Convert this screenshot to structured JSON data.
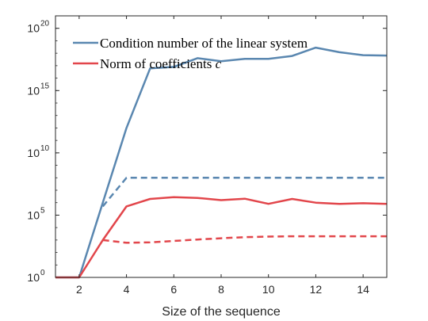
{
  "chart_data": {
    "type": "line",
    "title": "",
    "xlabel": "Size of the sequence",
    "ylabel": "",
    "xlim": [
      1,
      15
    ],
    "ylim": [
      1,
      1e+21
    ],
    "yscale": "log",
    "grid": false,
    "legend_position": "top-left",
    "x_ticks": [
      2,
      4,
      6,
      8,
      10,
      12,
      14
    ],
    "y_ticks": [
      {
        "base": "10",
        "exp": "0",
        "value": 1
      },
      {
        "base": "10",
        "exp": "5",
        "value": 100000
      },
      {
        "base": "10",
        "exp": "10",
        "value": 10000000000
      },
      {
        "base": "10",
        "exp": "15",
        "value": 1000000000000000.0
      },
      {
        "base": "10",
        "exp": "20",
        "value": 1e+20
      }
    ],
    "legend": [
      {
        "text": "Condition number of the linear system",
        "italic_suffix": "",
        "color": "#5a87b0"
      },
      {
        "text": "Norm of coefficients ",
        "italic_suffix": "c",
        "color": "#e2464b"
      }
    ],
    "series": [
      {
        "key": "condition-solid",
        "color": "#5a87b0",
        "dash": false,
        "x": [
          1,
          2,
          3,
          4,
          5,
          6,
          7,
          8,
          9,
          10,
          11,
          12,
          13,
          14,
          15
        ],
        "y": [
          1,
          1,
          1000000.0,
          1000000000000.0,
          6e+16,
          8e+16,
          4e+17,
          2.3e+17,
          3.5e+17,
          3.5e+17,
          6e+17,
          2.8e+18,
          1.2e+18,
          7e+17,
          6.5e+17
        ]
      },
      {
        "key": "condition-dashed",
        "color": "#5a87b0",
        "dash": true,
        "x": [
          3,
          4,
          5,
          6,
          7,
          8,
          9,
          10,
          11,
          12,
          13,
          14,
          15
        ],
        "y": [
          500000,
          100000000.0,
          100000000.0,
          100000000.0,
          100000000.0,
          100000000.0,
          100000000.0,
          100000000.0,
          100000000.0,
          100000000.0,
          100000000.0,
          100000000.0,
          100000000.0
        ]
      },
      {
        "key": "coefficients-solid",
        "color": "#e2464b",
        "dash": false,
        "x": [
          1,
          2,
          3,
          4,
          5,
          6,
          7,
          8,
          9,
          10,
          11,
          12,
          13,
          14,
          15
        ],
        "y": [
          1,
          1,
          1000,
          500000,
          2000000.0,
          2800000.0,
          2400000.0,
          1600000.0,
          2100000.0,
          800000,
          2000000.0,
          1000000.0,
          800000,
          900000,
          800000
        ]
      },
      {
        "key": "coefficients-dashed",
        "color": "#e2464b",
        "dash": true,
        "x": [
          3,
          4,
          5,
          6,
          7,
          8,
          9,
          10,
          11,
          12,
          13,
          14,
          15
        ],
        "y": [
          1000,
          600,
          650,
          850,
          1100,
          1400,
          1700,
          1900,
          2000,
          2000,
          2000,
          2000,
          2000
        ]
      }
    ]
  }
}
